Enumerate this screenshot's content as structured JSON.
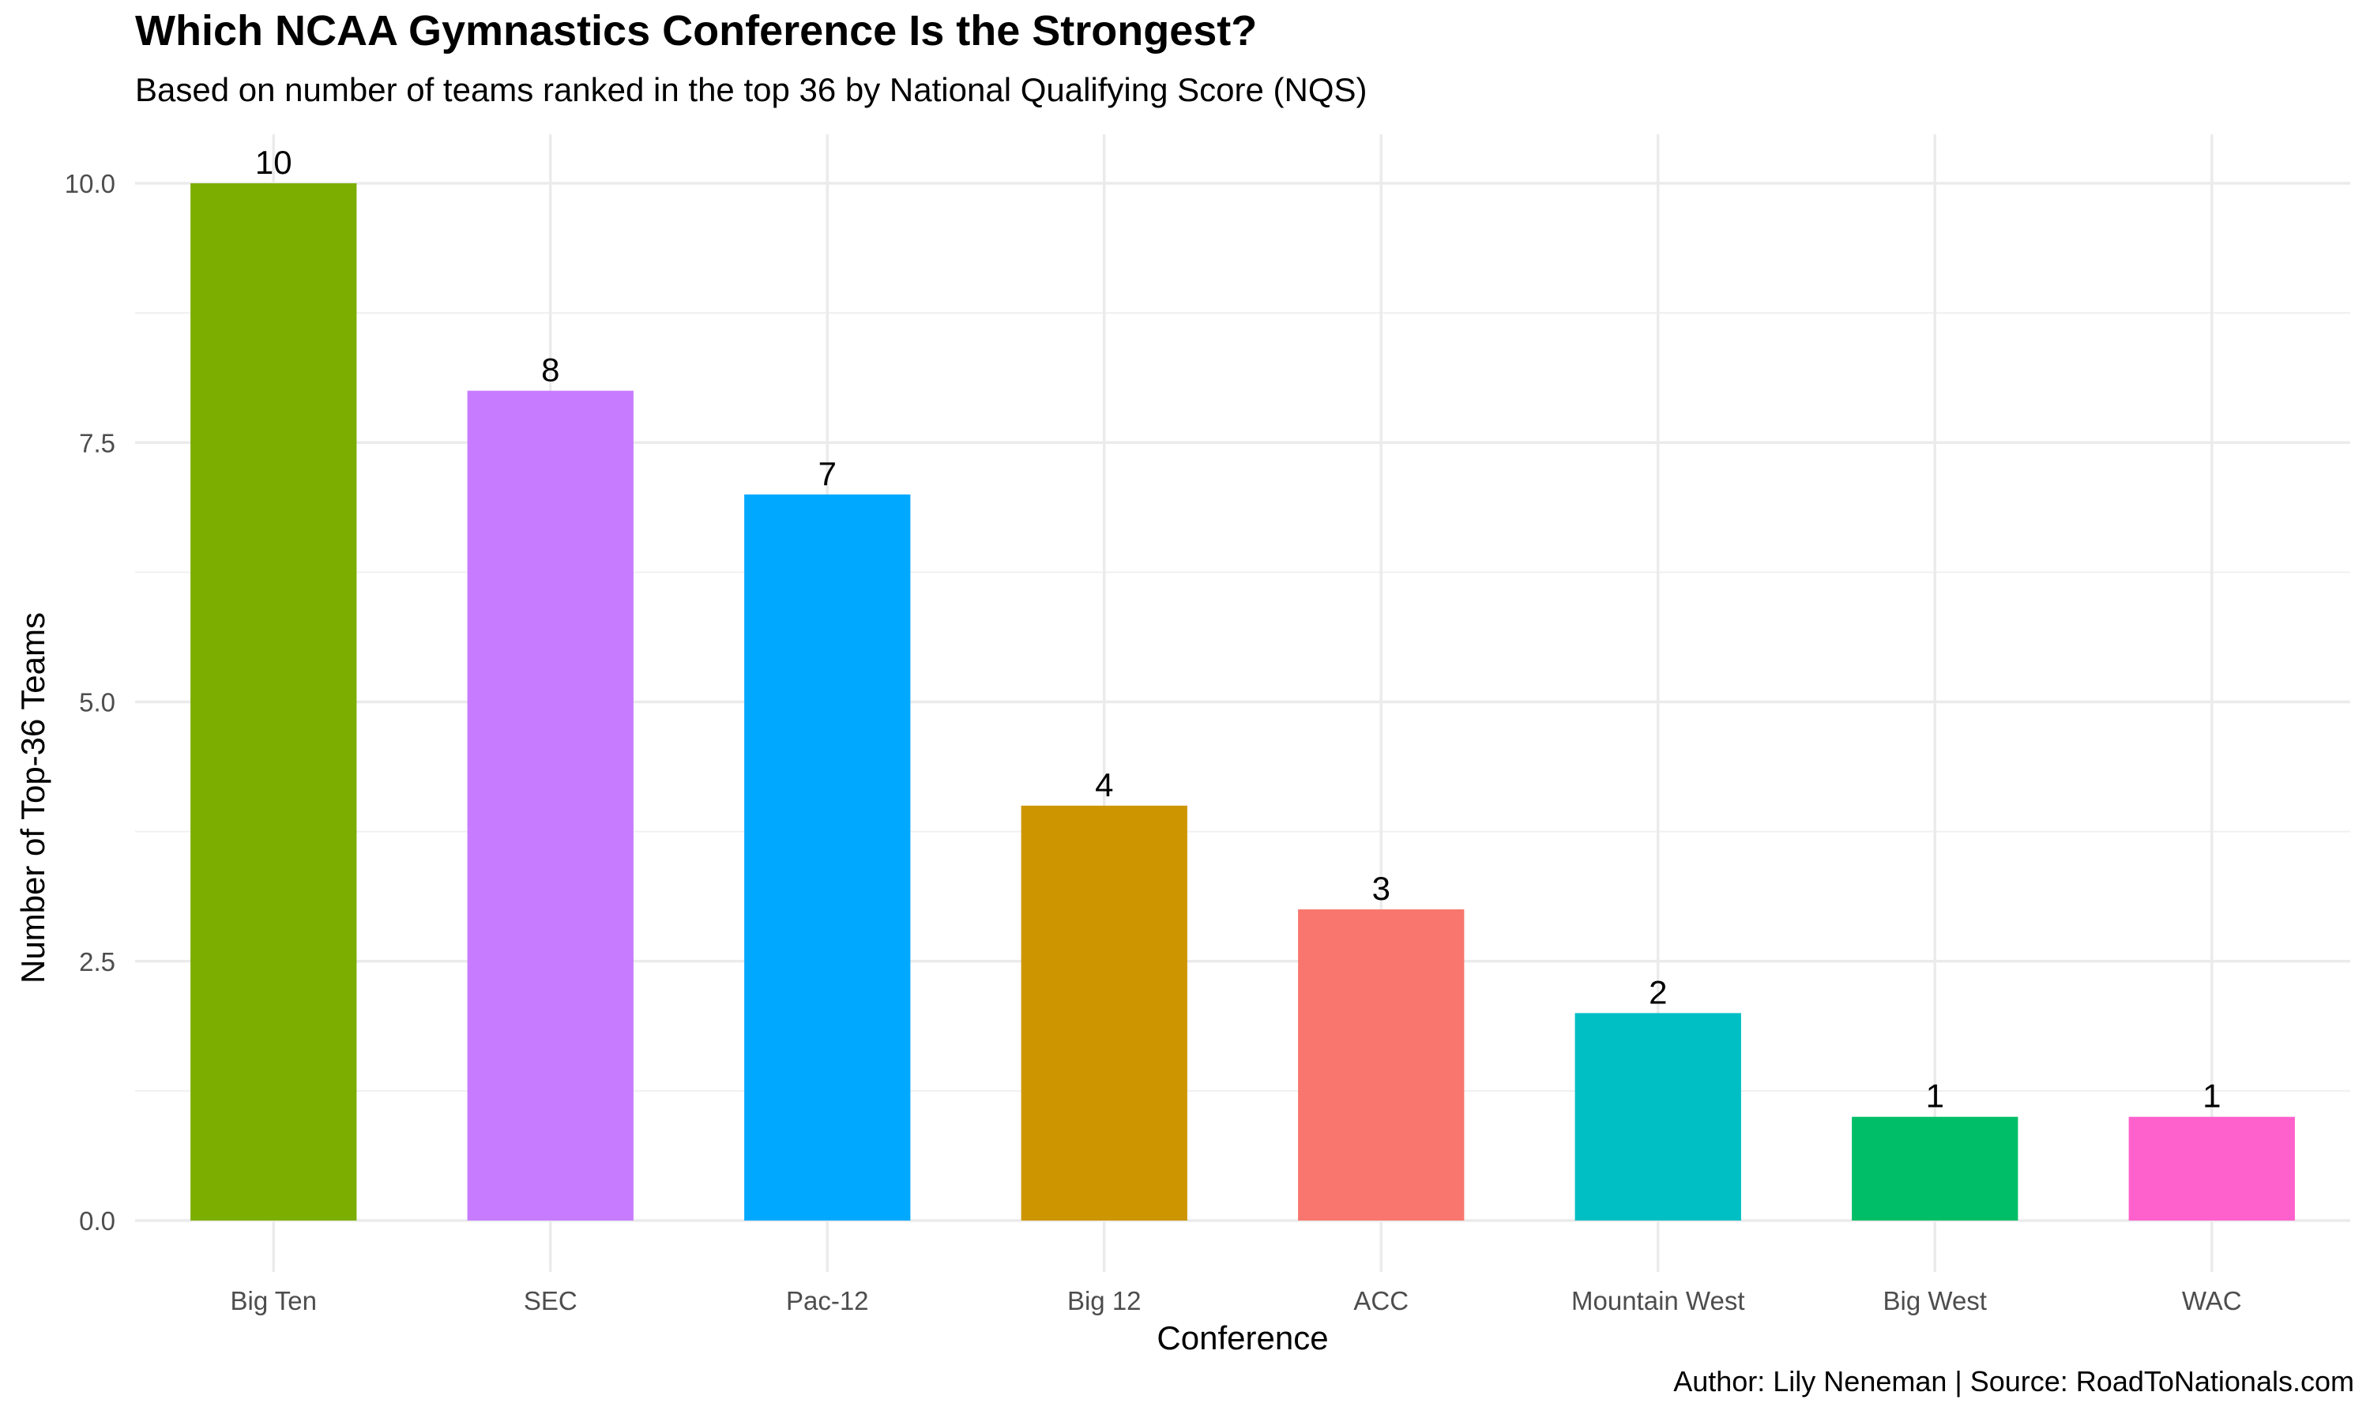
{
  "chart_data": {
    "type": "bar",
    "title": "Which NCAA Gymnastics Conference Is the Strongest?",
    "subtitle": "Based on number of teams ranked in the top 36 by National Qualifying Score (NQS)",
    "caption": "Author: Lily Neneman | Source: RoadToNationals.com",
    "xlabel": "Conference",
    "ylabel": "Number of Top-36 Teams",
    "categories": [
      "Big Ten",
      "SEC",
      "Pac-12",
      "Big 12",
      "ACC",
      "Mountain West",
      "Big West",
      "WAC"
    ],
    "values": [
      10,
      8,
      7,
      4,
      3,
      2,
      1,
      1
    ],
    "data_labels": [
      "10",
      "8",
      "7",
      "4",
      "3",
      "2",
      "1",
      "1"
    ],
    "colors": [
      "#7CAE00",
      "#C77CFF",
      "#00A9FF",
      "#CD9600",
      "#F8766D",
      "#00BFC4",
      "#00BE67",
      "#FF61CC"
    ],
    "ylim": [
      0,
      10
    ],
    "yticks": [
      0,
      2.5,
      5,
      7.5,
      10
    ],
    "ytick_labels": [
      "0.0",
      "2.5",
      "5.0",
      "7.5",
      "10.0"
    ],
    "grid": true,
    "legend": "none"
  }
}
